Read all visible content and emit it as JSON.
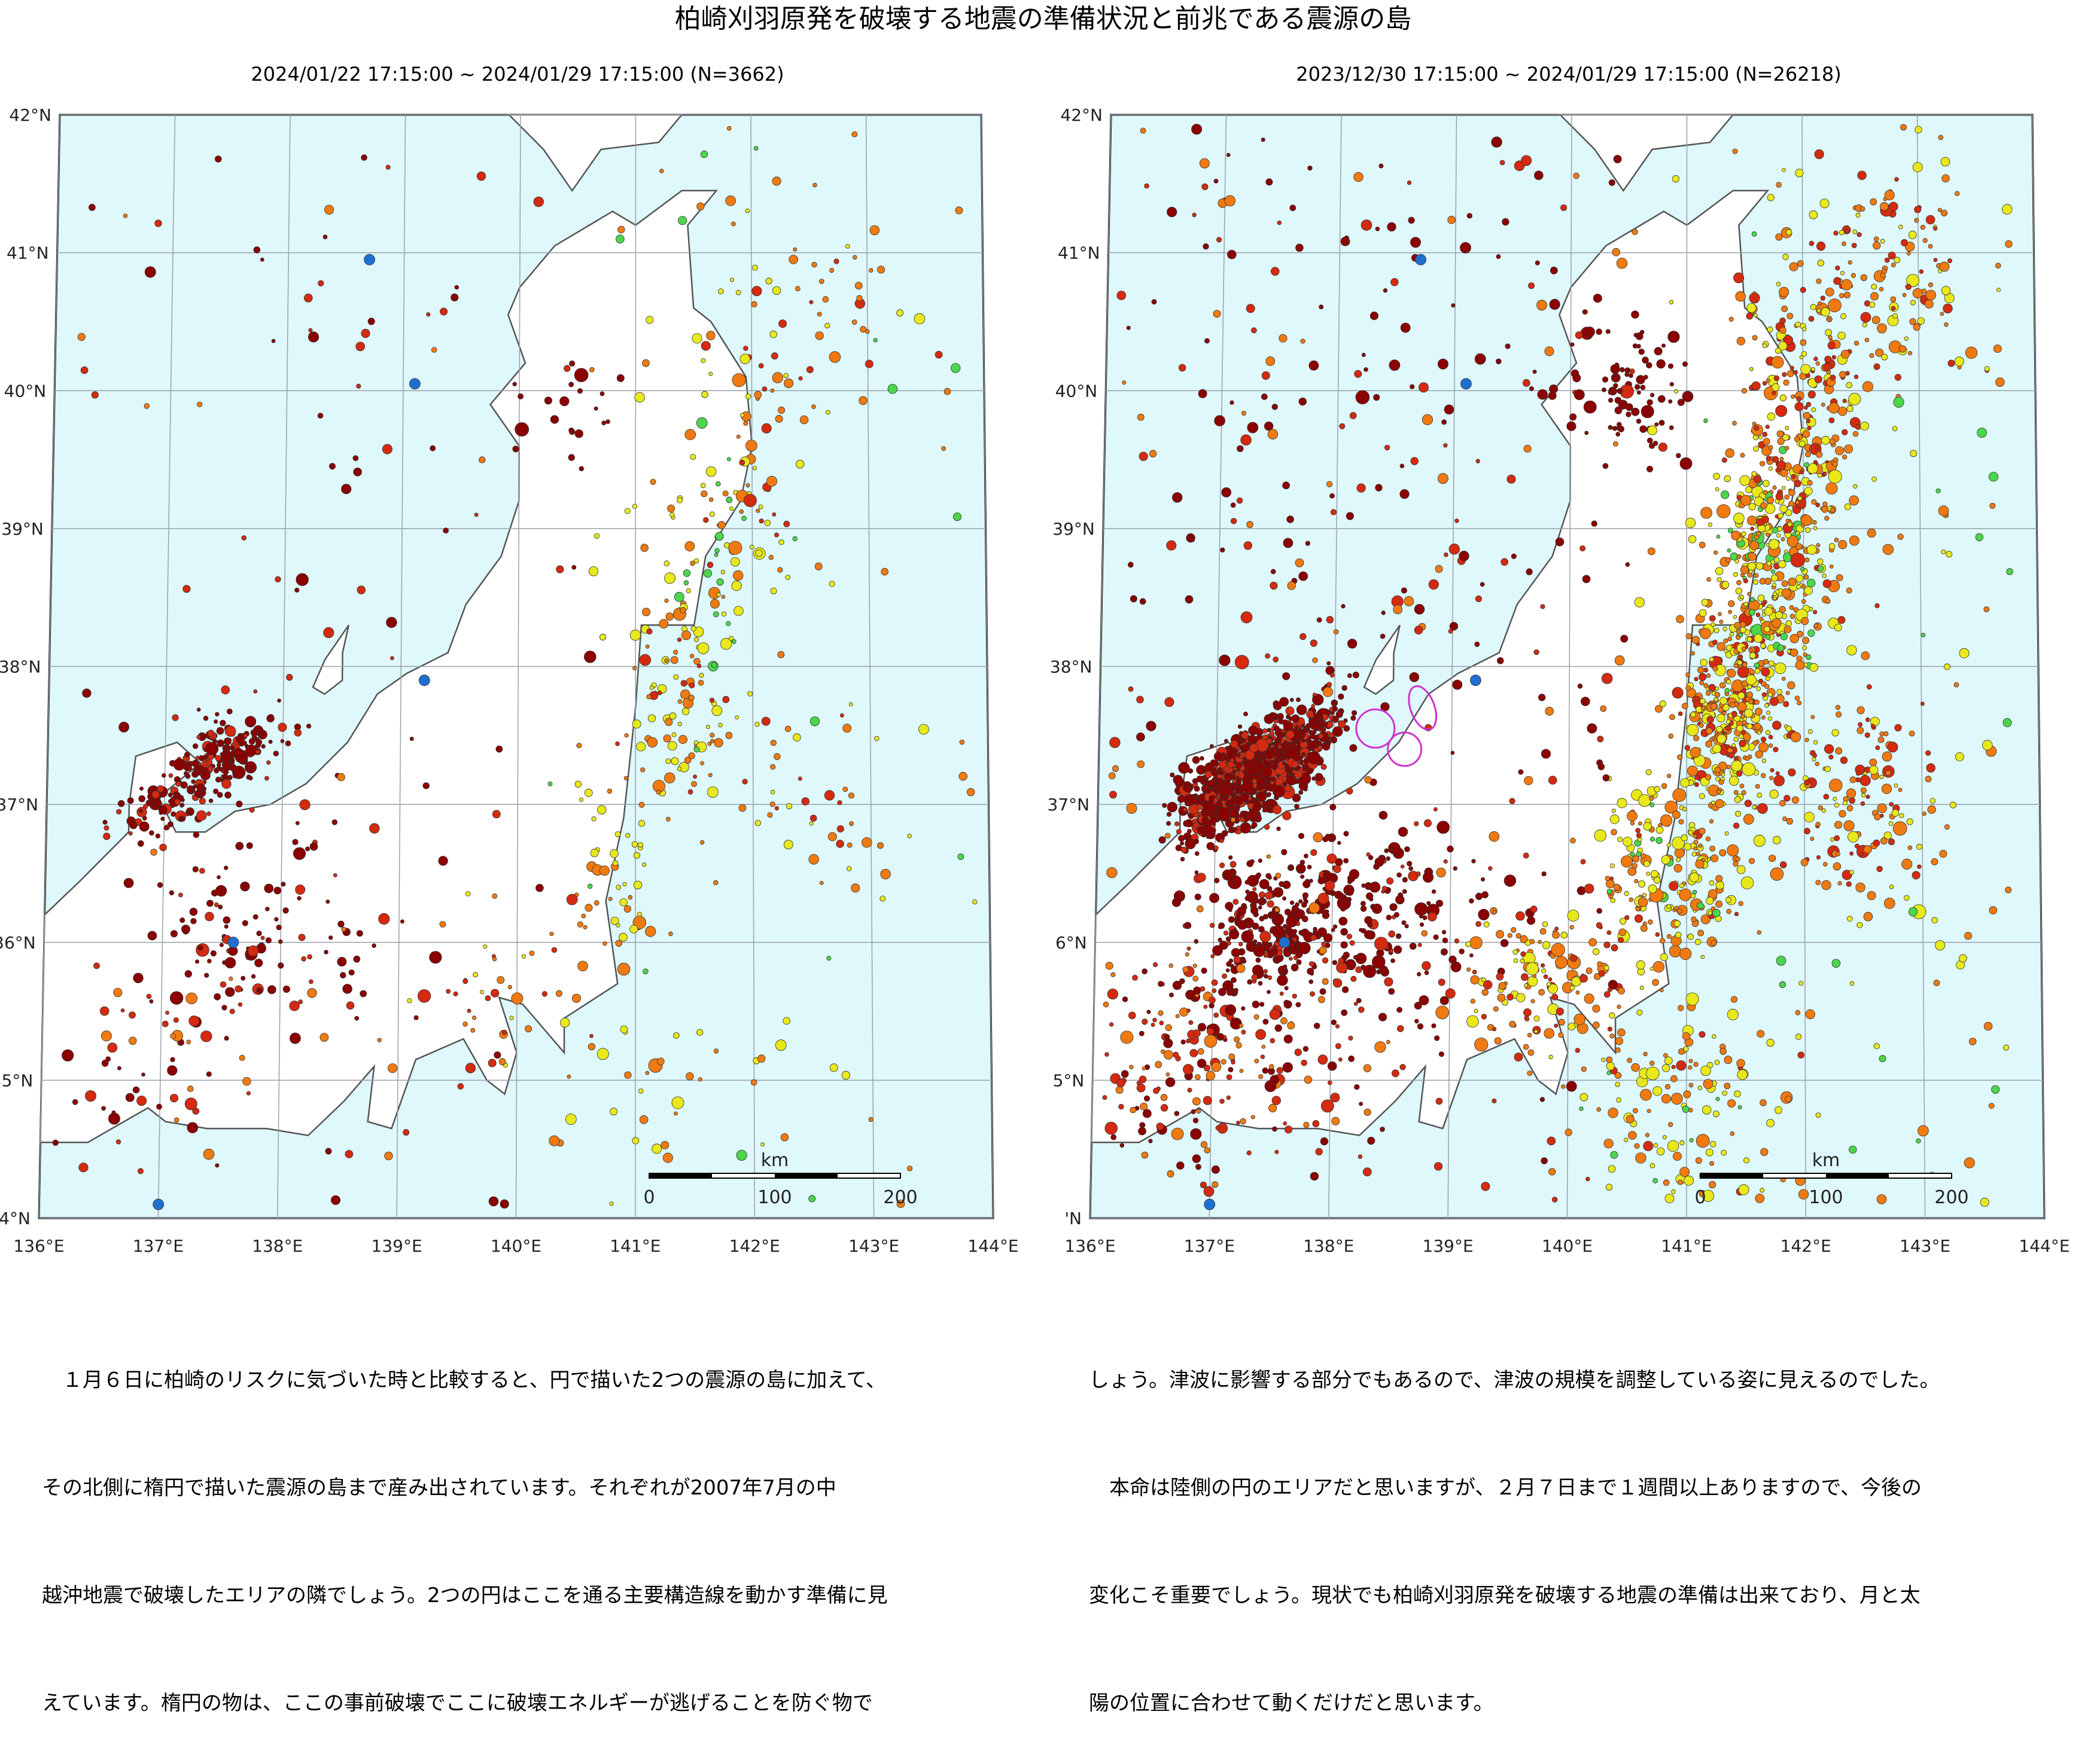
{
  "title": "柏崎刈羽原発を破壊する地震の準備状況と前兆である震源の島",
  "maps": [
    {
      "caption": "2024/01/22 17:15:00 ~ 2024/01/29 17:15:00 (N=3662)",
      "lat_labels": [
        "42°N",
        "41°N",
        "40°N",
        "39°N",
        "38°N",
        "37°N",
        "36°N",
        "35°N",
        "34°N"
      ],
      "lon_labels": [
        "136°E",
        "137°E",
        "138°E",
        "139°E",
        "140°E",
        "141°E",
        "142°E",
        "143°E",
        "144°E"
      ],
      "scale": {
        "unit": "km",
        "ticks": [
          "0",
          "100",
          "200"
        ]
      },
      "highlight_circles": 0
    },
    {
      "caption": "2023/12/30 17:15:00 ~ 2024/01/29 17:15:00 (N=26218)",
      "lat_labels": [
        "42°N",
        "41°N",
        "40°N",
        "39°N",
        "38°N",
        "37°N",
        "6°N",
        "5°N",
        "'N"
      ],
      "lon_labels": [
        "136°E",
        "137°E",
        "138°E",
        "139°E",
        "140°E",
        "141°E",
        "142°E",
        "143°E",
        "144°E"
      ],
      "scale": {
        "unit": "km",
        "ticks": [
          "0",
          "100",
          "200"
        ]
      },
      "highlight_circles": 3
    }
  ],
  "colors": {
    "sea": "#dff8fb",
    "land": "#ffffff",
    "coast": "#555555",
    "grid": "#9aa0aa",
    "deep_red": "#8b0000",
    "red": "#d42a10",
    "orange": "#f07a10",
    "yellow": "#e8e81a",
    "green": "#4bd64b",
    "blue": "#1f6fd0",
    "ellipse": "#d030d0"
  },
  "body_text": {
    "left": [
      "　１月６日に柏崎のリスクに気づいた時と比較すると、円で描いた2つの震源の島に加えて、",
      "その北側に楕円で描いた震源の島まで産み出されています。それぞれが2007年7月の中",
      "越沖地震で破壊したエリアの隣でしょう。2つの円はここを通る主要構造線を動かす準備に見",
      "えています。楕円の物は、ここの事前破壊でここに破壊エネルギーが逃げることを防ぐ物で"
    ],
    "right": [
      "しょう。津波に影響する部分でもあるので、津波の規模を調整している姿に見えるのでした。",
      "　本命は陸側の円のエリアだと思いますが、２月７日まで１週間以上ありますので、今後の",
      "変化こそ重要でしょう。現状でも柏崎刈羽原発を破壊する地震の準備は出来ており、月と太",
      "陽の位置に合わせて動くだけだと思います。"
    ]
  }
}
